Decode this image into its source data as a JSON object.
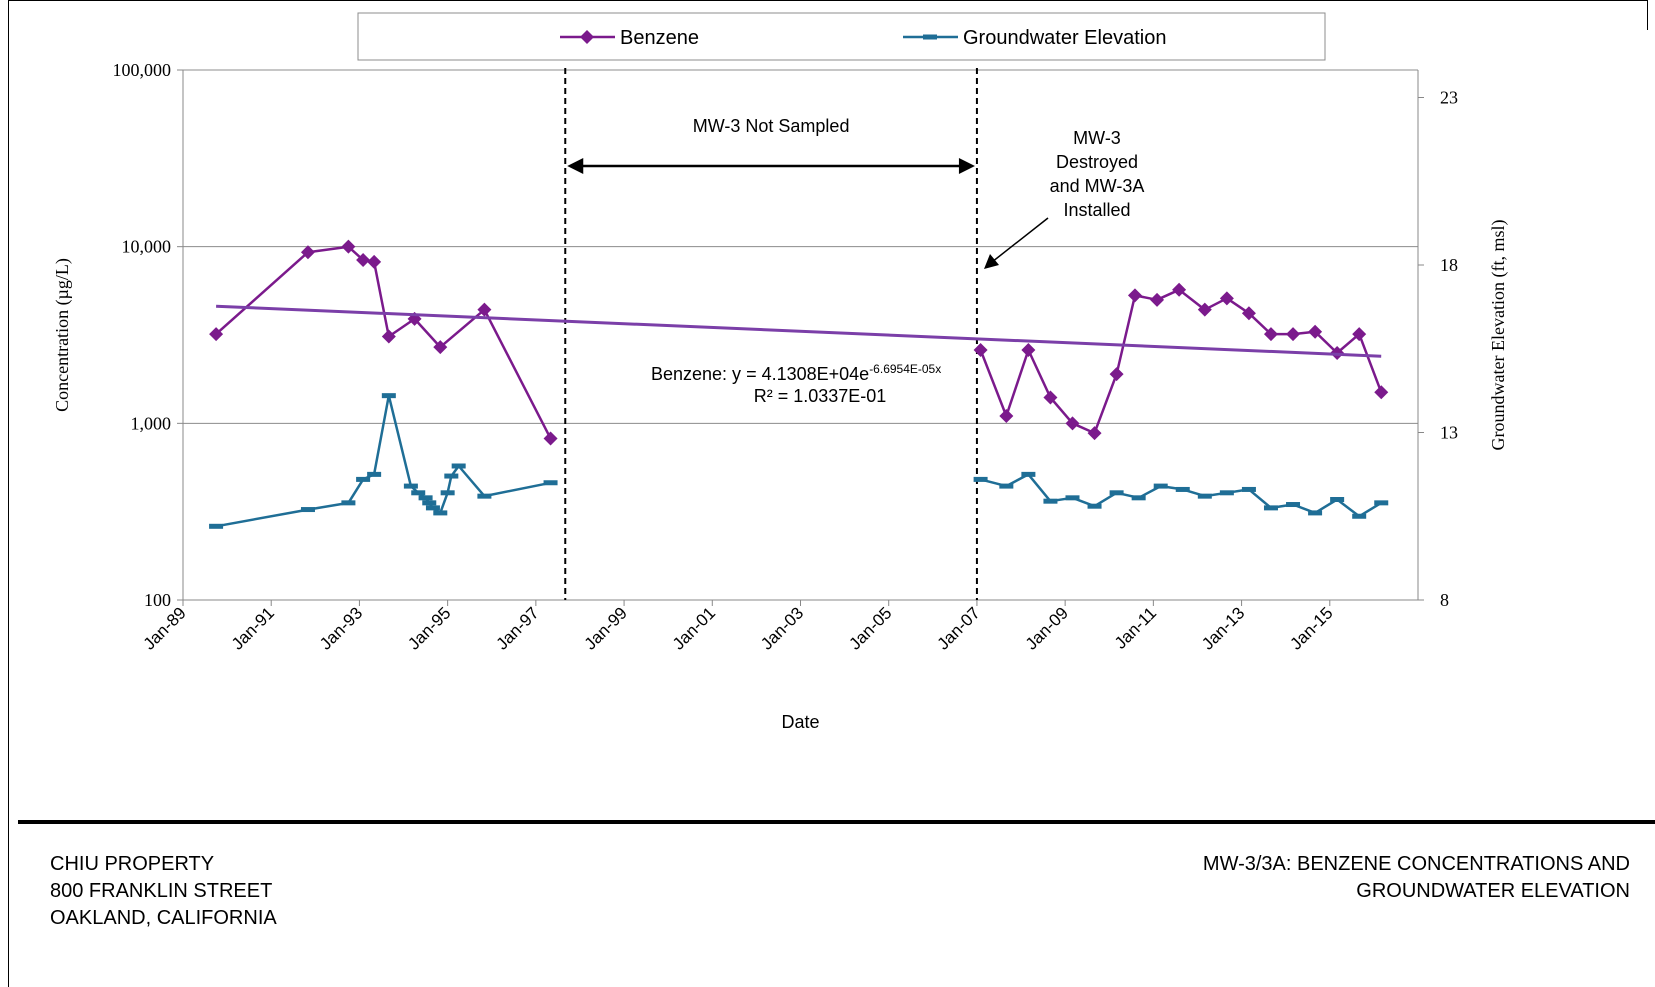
{
  "legend": [
    {
      "label": "Benzene",
      "color": "#7B1A8C",
      "marker": "diamond-icon"
    },
    {
      "label": "Groundwater Elevation",
      "color": "#1F6E96",
      "marker": "dash-icon"
    }
  ],
  "annotations": {
    "not_sampled": "MW-3 Not Sampled",
    "destroyed": [
      "MW-3",
      "Destroyed",
      "and MW-3A",
      "Installed"
    ],
    "trend_eq_prefix": "Benzene: y = 4.1308E+04e",
    "trend_eq_exponent": "-6.6954E-05x",
    "r_squared": "R² = 1.0337E-01"
  },
  "footer": {
    "left": [
      "CHIU PROPERTY",
      "800 FRANKLIN STREET",
      "OAKLAND, CALIFORNIA"
    ],
    "right": [
      "MW-3/3A: BENZENE CONCENTRATIONS AND",
      "GROUNDWATER ELEVATION"
    ]
  },
  "chart_data": {
    "type": "line",
    "xlabel": "Date",
    "ylabel": "Concentration (µg/L)",
    "y2label": "Groundwater Elevation (ft, msl)",
    "yscale": "log",
    "ylim": [
      100,
      100000
    ],
    "y2lim": [
      8,
      24
    ],
    "xlim": [
      "1989-01",
      "2017-01"
    ],
    "x_ticks": [
      "Jan-89",
      "Jan-91",
      "Jan-93",
      "Jan-95",
      "Jan-97",
      "Jan-99",
      "Jan-01",
      "Jan-03",
      "Jan-05",
      "Jan-07",
      "Jan-09",
      "Jan-11",
      "Jan-13",
      "Jan-15"
    ],
    "y_ticks": [
      "100",
      "1,000",
      "10,000",
      "100,000"
    ],
    "y2_ticks": [
      "8",
      "13",
      "18",
      "23"
    ],
    "grid": "horizontal at y-axis major ticks",
    "legend_position": "top",
    "vertical_markers": [
      "1997-09",
      "2007-01"
    ],
    "series": [
      {
        "name": "Benzene",
        "color": "#7B1A8C",
        "axis": "left",
        "segments": [
          [
            {
              "x": "1989-10",
              "y": 3200
            },
            {
              "x": "1991-11",
              "y": 9300
            },
            {
              "x": "1992-10",
              "y": 10000
            },
            {
              "x": "1993-02",
              "y": 8400
            },
            {
              "x": "1993-05",
              "y": 8200
            },
            {
              "x": "1993-09",
              "y": 3100
            },
            {
              "x": "1994-04",
              "y": 3900
            },
            {
              "x": "1994-11",
              "y": 2700
            },
            {
              "x": "1995-11",
              "y": 4400
            },
            {
              "x": "1997-05",
              "y": 820
            }
          ],
          [
            {
              "x": "2007-02",
              "y": 2600
            },
            {
              "x": "2007-09",
              "y": 1100
            },
            {
              "x": "2008-03",
              "y": 2600
            },
            {
              "x": "2008-09",
              "y": 1400
            },
            {
              "x": "2009-03",
              "y": 1000
            },
            {
              "x": "2009-09",
              "y": 880
            },
            {
              "x": "2010-03",
              "y": 1900
            },
            {
              "x": "2010-08",
              "y": 5300
            },
            {
              "x": "2011-02",
              "y": 5000
            },
            {
              "x": "2011-08",
              "y": 5700
            },
            {
              "x": "2012-03",
              "y": 4400
            },
            {
              "x": "2012-09",
              "y": 5100
            },
            {
              "x": "2013-03",
              "y": 4200
            },
            {
              "x": "2013-09",
              "y": 3200
            },
            {
              "x": "2014-03",
              "y": 3200
            },
            {
              "x": "2014-09",
              "y": 3300
            },
            {
              "x": "2015-03",
              "y": 2500
            },
            {
              "x": "2015-09",
              "y": 3200
            },
            {
              "x": "2016-03",
              "y": 1500
            }
          ]
        ]
      },
      {
        "name": "Groundwater Elevation",
        "color": "#1F6E96",
        "axis": "right",
        "segments": [
          [
            {
              "x": "1989-10",
              "y": 10.2
            },
            {
              "x": "1991-11",
              "y": 10.7
            },
            {
              "x": "1992-10",
              "y": 10.9
            },
            {
              "x": "1993-02",
              "y": 11.6
            },
            {
              "x": "1993-05",
              "y": 11.75
            },
            {
              "x": "1993-09",
              "y": 14.1
            },
            {
              "x": "1994-03",
              "y": 11.4
            },
            {
              "x": "1994-05",
              "y": 11.2
            },
            {
              "x": "1994-07",
              "y": 11.05
            },
            {
              "x": "1994-08",
              "y": 10.9
            },
            {
              "x": "1994-09",
              "y": 10.75
            },
            {
              "x": "1994-11",
              "y": 10.6
            },
            {
              "x": "1995-01",
              "y": 11.2
            },
            {
              "x": "1995-02",
              "y": 11.7
            },
            {
              "x": "1995-04",
              "y": 12.0
            },
            {
              "x": "1995-11",
              "y": 11.1
            },
            {
              "x": "1997-05",
              "y": 11.5
            }
          ],
          [
            {
              "x": "2007-02",
              "y": 11.6
            },
            {
              "x": "2007-09",
              "y": 11.4
            },
            {
              "x": "2008-03",
              "y": 11.75
            },
            {
              "x": "2008-09",
              "y": 10.95
            },
            {
              "x": "2009-03",
              "y": 11.05
            },
            {
              "x": "2009-09",
              "y": 10.8
            },
            {
              "x": "2010-03",
              "y": 11.2
            },
            {
              "x": "2010-09",
              "y": 11.05
            },
            {
              "x": "2011-03",
              "y": 11.4
            },
            {
              "x": "2011-09",
              "y": 11.3
            },
            {
              "x": "2012-03",
              "y": 11.1
            },
            {
              "x": "2012-09",
              "y": 11.2
            },
            {
              "x": "2013-03",
              "y": 11.3
            },
            {
              "x": "2013-09",
              "y": 10.75
            },
            {
              "x": "2014-03",
              "y": 10.85
            },
            {
              "x": "2014-09",
              "y": 10.6
            },
            {
              "x": "2015-03",
              "y": 11.0
            },
            {
              "x": "2015-09",
              "y": 10.5
            },
            {
              "x": "2016-03",
              "y": 10.9
            }
          ]
        ]
      },
      {
        "name": "Benzene trend",
        "color": "#7B3FA8",
        "axis": "left",
        "segments": [
          [
            {
              "x": "1989-10",
              "y": 4600
            },
            {
              "x": "2016-03",
              "y": 2400
            }
          ]
        ]
      }
    ]
  }
}
